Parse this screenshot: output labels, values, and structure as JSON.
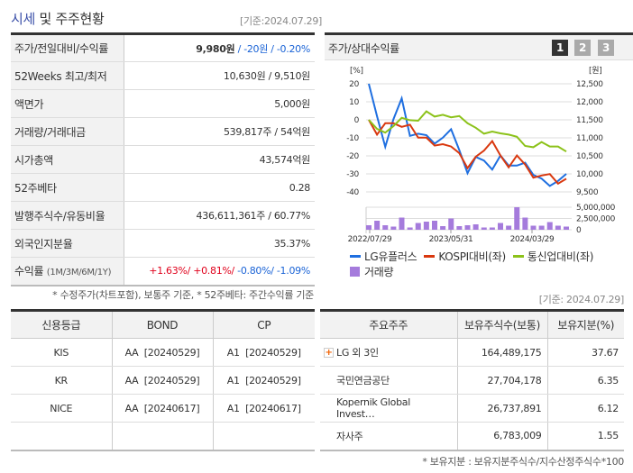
{
  "header": {
    "title_highlight": "시세",
    "title_rest": " 및 주주현황",
    "date": "[기준:2024.07.29]"
  },
  "info_rows": [
    {
      "label": "주가/전일대비/수익률",
      "value_bold": "9,980원",
      "value_rest": " / -20원 / -0.20%"
    },
    {
      "label": "52Weeks 최고/최저",
      "value": "10,630원 / 9,510원"
    },
    {
      "label": "액면가",
      "value": "5,000원"
    },
    {
      "label": "거래량/거래대금",
      "value": "539,817주 / 54억원"
    },
    {
      "label": "시가총액",
      "value": "43,574억원"
    },
    {
      "label": "52주베타",
      "value": "0.28"
    },
    {
      "label": "발행주식수/유동비율",
      "value": "436,611,361주 / 60.77%"
    },
    {
      "label": "외국인지분율",
      "value": "35.37%"
    },
    {
      "label": "수익률",
      "label_sub": "(1M/3M/6M/1Y)",
      "r1": "+1.63%/ ",
      "r2": "+0.81%/ ",
      "r3": "-0.80%/ ",
      "r4": "-1.09%"
    }
  ],
  "info_note": "* 수정주가(차트포함), 보통주 기준, * 52주베타: 주간수익률 기준",
  "chart": {
    "title": "주가/상대수익률",
    "buttons": [
      "1",
      "2",
      "3"
    ],
    "active_button": "1"
  },
  "chart_data": {
    "type": "line",
    "y_left_unit": "[%]",
    "y_right_unit": "[원]",
    "y_left_ticks": [
      "20",
      "10",
      "0",
      "-10",
      "-20",
      "-30",
      "-40"
    ],
    "y_right_ticks": [
      "12,500",
      "12,000",
      "11,500",
      "11,000",
      "10,500",
      "10,000",
      "9,500"
    ],
    "y_left_range": [
      -40,
      20
    ],
    "volume_ticks": [
      "5,000,000",
      "2,500,000",
      "0"
    ],
    "x_ticks": [
      "2022/07/29",
      "2023/05/31",
      "2024/03/29"
    ],
    "series": [
      {
        "name": "LG유플러스",
        "color": "#1f6fe0",
        "values": [
          20,
          2,
          -15,
          0.4,
          11.9,
          -8.9,
          -7.7,
          -8.5,
          -13.2,
          -9.9,
          -5.2,
          -16.8,
          -29.6,
          -20.6,
          -22.6,
          -27.6,
          -19.8,
          -25.4,
          -25.4,
          -23.8,
          -30.6,
          -32.6,
          -36.7,
          -33.9,
          -30
        ]
      },
      {
        "name": "KOSPI대비(좌)",
        "color": "#d9380f",
        "values": [
          0,
          -8.2,
          -1.9,
          -1.9,
          -3.9,
          -2.7,
          -9.9,
          -9.9,
          -14.3,
          -13.5,
          -14.8,
          -18.5,
          -26.8,
          -20.5,
          -17.1,
          -11.8,
          -19.8,
          -26.4,
          -19.8,
          -24.8,
          -32.1,
          -30.9,
          -30.1,
          -35.4,
          -32.7
        ]
      },
      {
        "name": "통신업대비(좌)",
        "color": "#8cc21a",
        "values": [
          0,
          -5,
          -7.1,
          -3.5,
          1.1,
          -0.2,
          -0.5,
          4.7,
          1.8,
          2.8,
          1.4,
          2.1,
          -1.9,
          -4.4,
          -7.7,
          -6.5,
          -7.5,
          -8.2,
          -9.4,
          -14.5,
          -15.2,
          -12.3,
          -14.8,
          -14.8,
          -17.6
        ]
      }
    ],
    "volume": {
      "name": "거래량",
      "color": "#a57bdc",
      "values": [
        1000000,
        2000000,
        1000000,
        700000,
        2700000,
        500000,
        1500000,
        1800000,
        2000000,
        800000,
        2500000,
        800000,
        1000000,
        1200000,
        500000,
        500000,
        1500000,
        900000,
        5000000,
        2700000,
        900000,
        900000,
        1700000,
        900000,
        700000
      ]
    }
  },
  "credit": {
    "headers": [
      "신용등급",
      "BOND",
      "CP"
    ],
    "rows": [
      [
        "KIS",
        "AA  [20240529]",
        "A1  [20240529]"
      ],
      [
        "KR",
        "AA  [20240529]",
        "A1  [20240529]"
      ],
      [
        "NICE",
        "AA  [20240617]",
        "A1  [20240617]"
      ],
      [
        "",
        "",
        ""
      ]
    ]
  },
  "shareholders": {
    "date": "[기준: 2024.07.29]",
    "headers": [
      "주요주주",
      "보유주식수(보통)",
      "보유지분(%)"
    ],
    "rows": [
      [
        "LG 외 3인",
        "164,489,175",
        "37.67"
      ],
      [
        "국민연금공단",
        "27,704,178",
        "6.35"
      ],
      [
        "Kopernik Global Invest…",
        "26,737,891",
        "6.12"
      ],
      [
        "자사주",
        "6,783,009",
        "1.55"
      ]
    ],
    "note": "* 보유지분 : 보유지분주식수/지수산정주식수*100"
  }
}
